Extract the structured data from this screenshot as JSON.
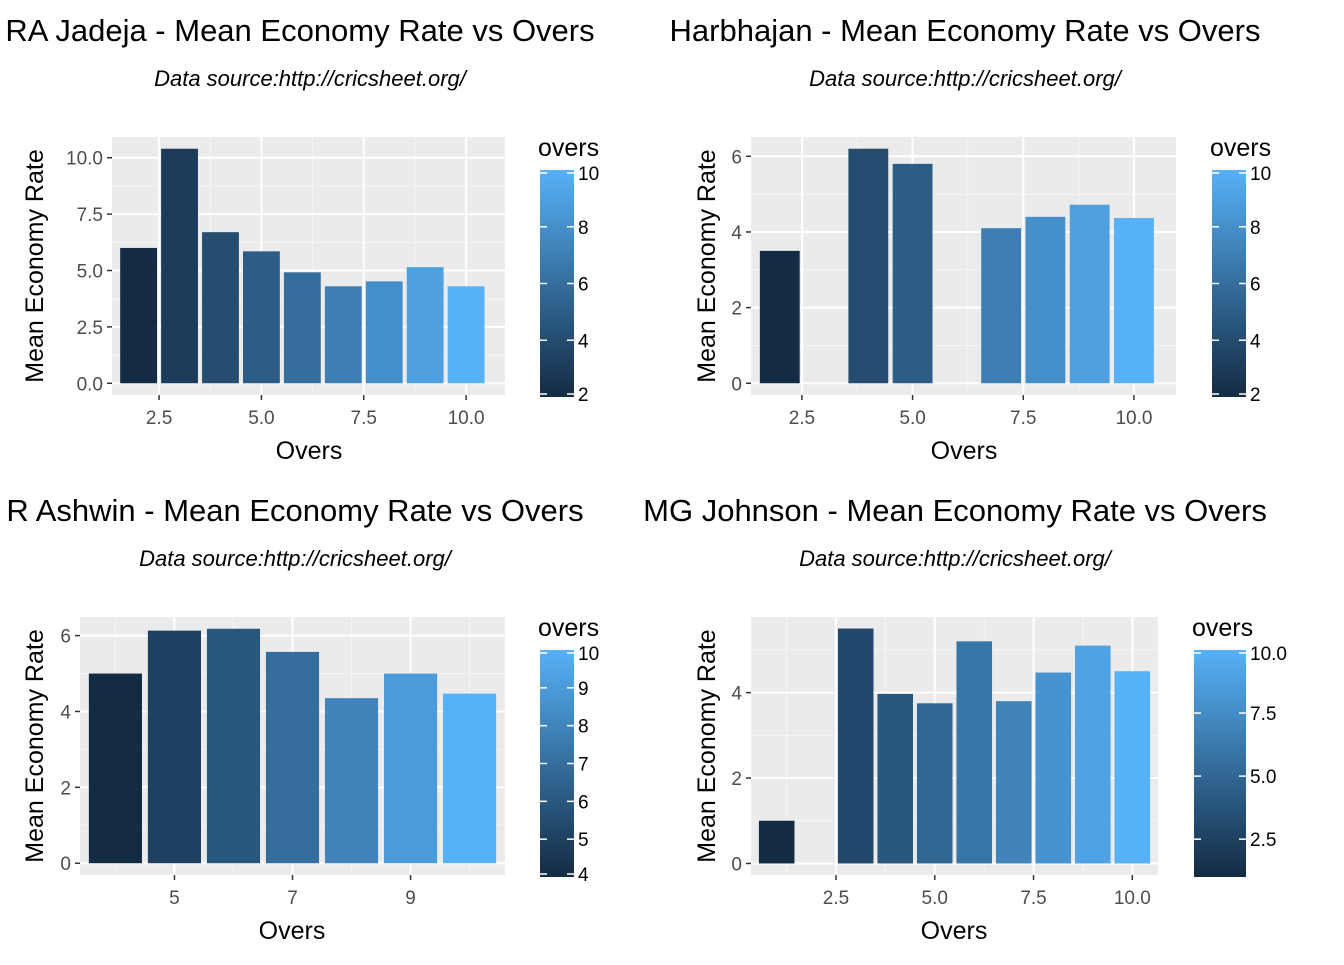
{
  "chart_data": [
    {
      "type": "bar",
      "title": "RA Jadeja - Mean Economy Rate vs Overs",
      "subtitle": "Data source:http://cricsheet.org/",
      "xlabel": "Overs",
      "ylabel": "Mean Economy Rate",
      "legend_title": "overs",
      "x": [
        2,
        3,
        4,
        5,
        6,
        7,
        8,
        9,
        10
      ],
      "values": [
        6.0,
        10.4,
        6.7,
        5.85,
        4.92,
        4.3,
        4.52,
        5.15,
        4.3
      ],
      "xlim": [
        1.35,
        10.95
      ],
      "ylim": [
        -0.52,
        10.92
      ],
      "xticks": [
        2.5,
        5.0,
        7.5,
        10.0
      ],
      "xtick_labels": [
        "2.5",
        "5.0",
        "7.5",
        "10.0"
      ],
      "yticks": [
        0,
        2.5,
        5,
        7.5,
        10
      ],
      "ytick_labels": [
        "0.0",
        "2.5",
        "5.0",
        "7.5",
        "10.0"
      ],
      "color_range": [
        2,
        10
      ],
      "legend_ticks": [
        2,
        4,
        6,
        8,
        10
      ],
      "legend_tick_labels": [
        "2",
        "4",
        "6",
        "8",
        "10"
      ],
      "grid": true,
      "legend_position": "right"
    },
    {
      "type": "bar",
      "title": "Harbhajan - Mean Economy Rate vs Overs",
      "subtitle": "Data source:http://cricsheet.org/",
      "xlabel": "Overs",
      "ylabel": "Mean Economy Rate",
      "legend_title": "overs",
      "x": [
        2,
        4,
        5,
        7,
        8,
        9,
        10
      ],
      "values": [
        3.5,
        6.2,
        5.8,
        4.1,
        4.4,
        4.72,
        4.37
      ],
      "xlim": [
        1.35,
        10.95
      ],
      "ylim": [
        -0.31,
        6.51
      ],
      "xticks": [
        2.5,
        5.0,
        7.5,
        10.0
      ],
      "xtick_labels": [
        "2.5",
        "5.0",
        "7.5",
        "10.0"
      ],
      "yticks": [
        0,
        2,
        4,
        6
      ],
      "ytick_labels": [
        "0",
        "2",
        "4",
        "6"
      ],
      "color_range": [
        2,
        10
      ],
      "legend_ticks": [
        2,
        4,
        6,
        8,
        10
      ],
      "legend_tick_labels": [
        "2",
        "4",
        "6",
        "8",
        "10"
      ],
      "grid": true,
      "legend_position": "right"
    },
    {
      "type": "bar",
      "title": "R Ashwin - Mean Economy Rate vs Overs",
      "subtitle": "Data source:http://cricsheet.org/",
      "xlabel": "Overs",
      "ylabel": "Mean Economy Rate",
      "legend_title": "overs",
      "x": [
        4,
        5,
        6,
        7,
        8,
        9,
        10
      ],
      "values": [
        5.0,
        6.13,
        6.18,
        5.57,
        4.35,
        5.0,
        4.47
      ],
      "xlim": [
        3.4,
        10.6
      ],
      "ylim": [
        -0.31,
        6.49
      ],
      "xticks": [
        5,
        7,
        9
      ],
      "xtick_labels": [
        "5",
        "7",
        "9"
      ],
      "yticks": [
        0,
        2,
        4,
        6
      ],
      "ytick_labels": [
        "0",
        "2",
        "4",
        "6"
      ],
      "color_range": [
        4,
        10
      ],
      "legend_ticks": [
        4,
        5,
        6,
        7,
        8,
        9,
        10
      ],
      "legend_tick_labels": [
        "4",
        "5",
        "6",
        "7",
        "8",
        "9",
        "10"
      ],
      "grid": true,
      "legend_position": "right"
    },
    {
      "type": "bar",
      "title": "MG Johnson - Mean Economy Rate vs Overs",
      "subtitle": "Data source:http://cricsheet.org/",
      "xlabel": "Overs",
      "ylabel": "Mean Economy Rate",
      "legend_title": "overs",
      "x": [
        1,
        3,
        4,
        5,
        6,
        7,
        8,
        9,
        10
      ],
      "values": [
        1.0,
        5.5,
        3.97,
        3.75,
        5.2,
        3.8,
        4.47,
        5.1,
        4.5
      ],
      "xlim": [
        0.35,
        10.65
      ],
      "ylim": [
        -0.27,
        5.77
      ],
      "xticks": [
        2.5,
        5.0,
        7.5,
        10.0
      ],
      "xtick_labels": [
        "2.5",
        "5.0",
        "7.5",
        "10.0"
      ],
      "yticks": [
        0,
        2,
        4
      ],
      "ytick_labels": [
        "0",
        "2",
        "4"
      ],
      "color_range": [
        1,
        10
      ],
      "legend_ticks": [
        2.5,
        5.0,
        7.5,
        10.0
      ],
      "legend_tick_labels": [
        "2.5",
        "5.0",
        "7.5",
        "10.0"
      ],
      "grid": true,
      "legend_position": "right"
    }
  ]
}
